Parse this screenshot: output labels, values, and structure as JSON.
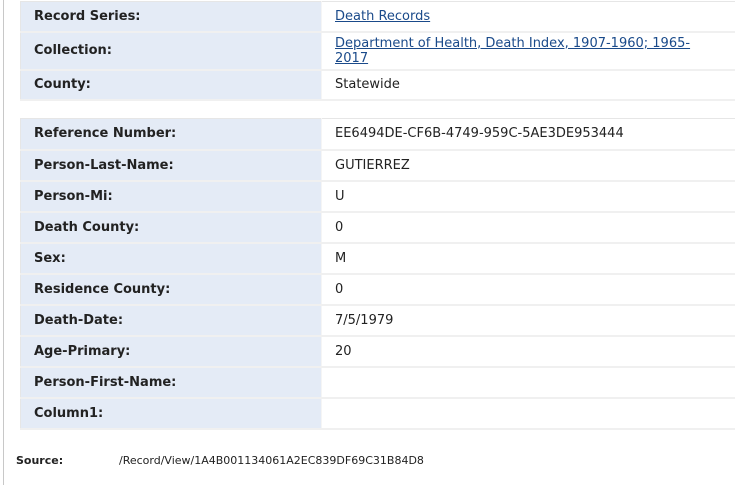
{
  "collection_info": [
    {
      "label": "Record Series:",
      "value": "Death Records",
      "link": true
    },
    {
      "label": "Collection:",
      "value": "Department of Health, Death Index, 1907-1960; 1965-2017",
      "link": true
    },
    {
      "label": "County:",
      "value": "Statewide",
      "link": false
    }
  ],
  "record_fields": [
    {
      "label": "Reference Number:",
      "value": "EE6494DE-CF6B-4749-959C-5AE3DE953444"
    },
    {
      "label": "Person-Last-Name:",
      "value": "GUTIERREZ"
    },
    {
      "label": "Person-Mi:",
      "value": "U"
    },
    {
      "label": "Death County:",
      "value": "0"
    },
    {
      "label": "Sex:",
      "value": "M"
    },
    {
      "label": "Residence County:",
      "value": "0"
    },
    {
      "label": "Death-Date:",
      "value": "7/5/1979"
    },
    {
      "label": "Age-Primary:",
      "value": "20"
    },
    {
      "label": "Person-First-Name:",
      "value": ""
    },
    {
      "label": "Column1:",
      "value": ""
    }
  ],
  "source": {
    "label": "Source:",
    "value": "/Record/View/1A4B001134061A2EC839DF69C31B84D8"
  }
}
